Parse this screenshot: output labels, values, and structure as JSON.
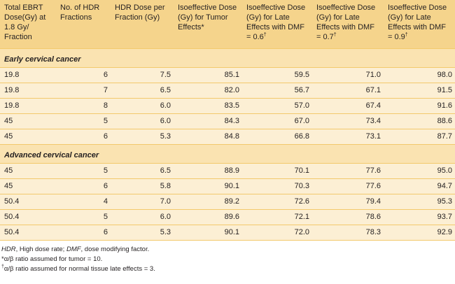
{
  "table": {
    "headers": [
      "Total EBRT Dose(Gy) at 1.8 Gy/ Fraction",
      "No. of HDR Fractions",
      "HDR Dose per Fraction (Gy)",
      "Isoeffective Dose (Gy) for Tumor Effects*",
      "Isoeffective Dose (Gy) for Late Effects with DMF = 0.6†",
      "Isoeffective Dose (Gy) for Late Effects with DMF = 0.7†",
      "Isoeffective Dose (Gy) for Late Effects with DMF = 0.9†"
    ],
    "sections": [
      {
        "title": "Early cervical cancer",
        "rows": [
          [
            "19.8",
            "6",
            "7.5",
            "85.1",
            "59.5",
            "71.0",
            "98.0"
          ],
          [
            "19.8",
            "7",
            "6.5",
            "82.0",
            "56.7",
            "67.1",
            "91.5"
          ],
          [
            "19.8",
            "8",
            "6.0",
            "83.5",
            "57.0",
            "67.4",
            "91.6"
          ],
          [
            "45",
            "5",
            "6.0",
            "84.3",
            "67.0",
            "73.4",
            "88.6"
          ],
          [
            "45",
            "6",
            "5.3",
            "84.8",
            "66.8",
            "73.1",
            "87.7"
          ]
        ]
      },
      {
        "title": "Advanced cervical cancer",
        "rows": [
          [
            "45",
            "5",
            "6.5",
            "88.9",
            "70.1",
            "77.6",
            "95.0"
          ],
          [
            "45",
            "6",
            "5.8",
            "90.1",
            "70.3",
            "77.6",
            "94.7"
          ],
          [
            "50.4",
            "4",
            "7.0",
            "89.2",
            "72.6",
            "79.4",
            "95.3"
          ],
          [
            "50.4",
            "5",
            "6.0",
            "89.6",
            "72.1",
            "78.6",
            "93.7"
          ],
          [
            "50.4",
            "6",
            "5.3",
            "90.1",
            "72.0",
            "78.3",
            "92.9"
          ]
        ]
      }
    ]
  },
  "footnotes": {
    "abbrev": {
      "hdr_term": "HDR",
      "hdr_def": ", High dose rate; ",
      "dmf_term": "DMF",
      "dmf_def": ", dose modifying factor."
    },
    "tumor_mark": "*",
    "tumor_text": "α/β ratio assumed for tumor = 10.",
    "late_mark": "†",
    "late_text": "α/β ratio assumed for normal tissue late effects = 3."
  },
  "colors": {
    "header_bg": "#f5d48c",
    "row_bg": "#fcefd4",
    "section_bg": "#fae3b1",
    "rule": "#f3c96c"
  }
}
